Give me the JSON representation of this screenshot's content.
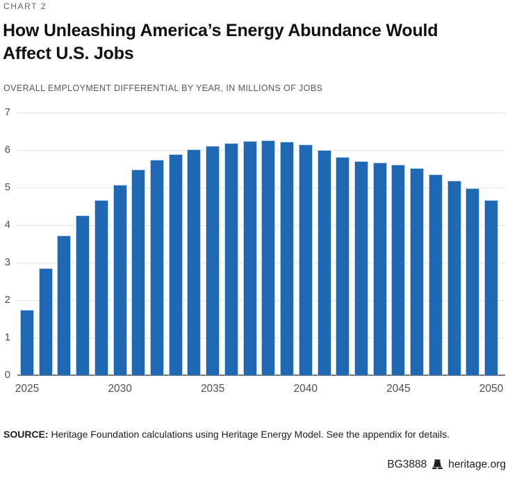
{
  "header": {
    "kicker": "CHART 2",
    "title_lines": [
      "How Unleashing America’s Energy Abundance Would",
      "Affect U.S. Jobs"
    ],
    "subtitle": "OVERALL EMPLOYMENT DIFFERENTIAL BY YEAR, IN MILLIONS OF JOBS"
  },
  "chart_data": {
    "type": "bar",
    "title": "How Unleashing America’s Energy Abundance Would Affect U.S. Jobs",
    "subtitle": "OVERALL EMPLOYMENT DIFFERENTIAL BY YEAR, IN MILLIONS OF JOBS",
    "xlabel": "",
    "ylabel": "Overall employment differential, millions of jobs",
    "x": [
      2025,
      2026,
      2027,
      2028,
      2029,
      2030,
      2031,
      2032,
      2033,
      2034,
      2035,
      2036,
      2037,
      2038,
      2039,
      2040,
      2041,
      2042,
      2043,
      2044,
      2045,
      2046,
      2047,
      2048,
      2049,
      2050
    ],
    "values": [
      1.75,
      2.86,
      3.73,
      4.26,
      4.66,
      5.08,
      5.48,
      5.75,
      5.88,
      6.01,
      6.11,
      6.18,
      6.24,
      6.26,
      6.22,
      6.15,
      6.0,
      5.81,
      5.7,
      5.66,
      5.62,
      5.52,
      5.36,
      5.18,
      4.98,
      4.66
    ],
    "ylim": [
      0,
      7
    ],
    "yticks": [
      0,
      1,
      2,
      3,
      4,
      5,
      6,
      7
    ],
    "xticks": [
      2025,
      2030,
      2035,
      2040,
      2045,
      2050
    ],
    "grid": "horizontal",
    "legend": "none",
    "bar_color": "#1f68b3",
    "bar_highlight_color": "#b7d0ea",
    "gridline_color": "#e5e5e5",
    "axis_color": "#77777b"
  },
  "footer": {
    "source_label": "SOURCE:",
    "source_text": " Heritage Foundation calculations using Heritage Energy Model. See the appendix for details.",
    "report_id": "BG3888",
    "site": "heritage.org",
    "logo": "liberty-bell-icon"
  }
}
